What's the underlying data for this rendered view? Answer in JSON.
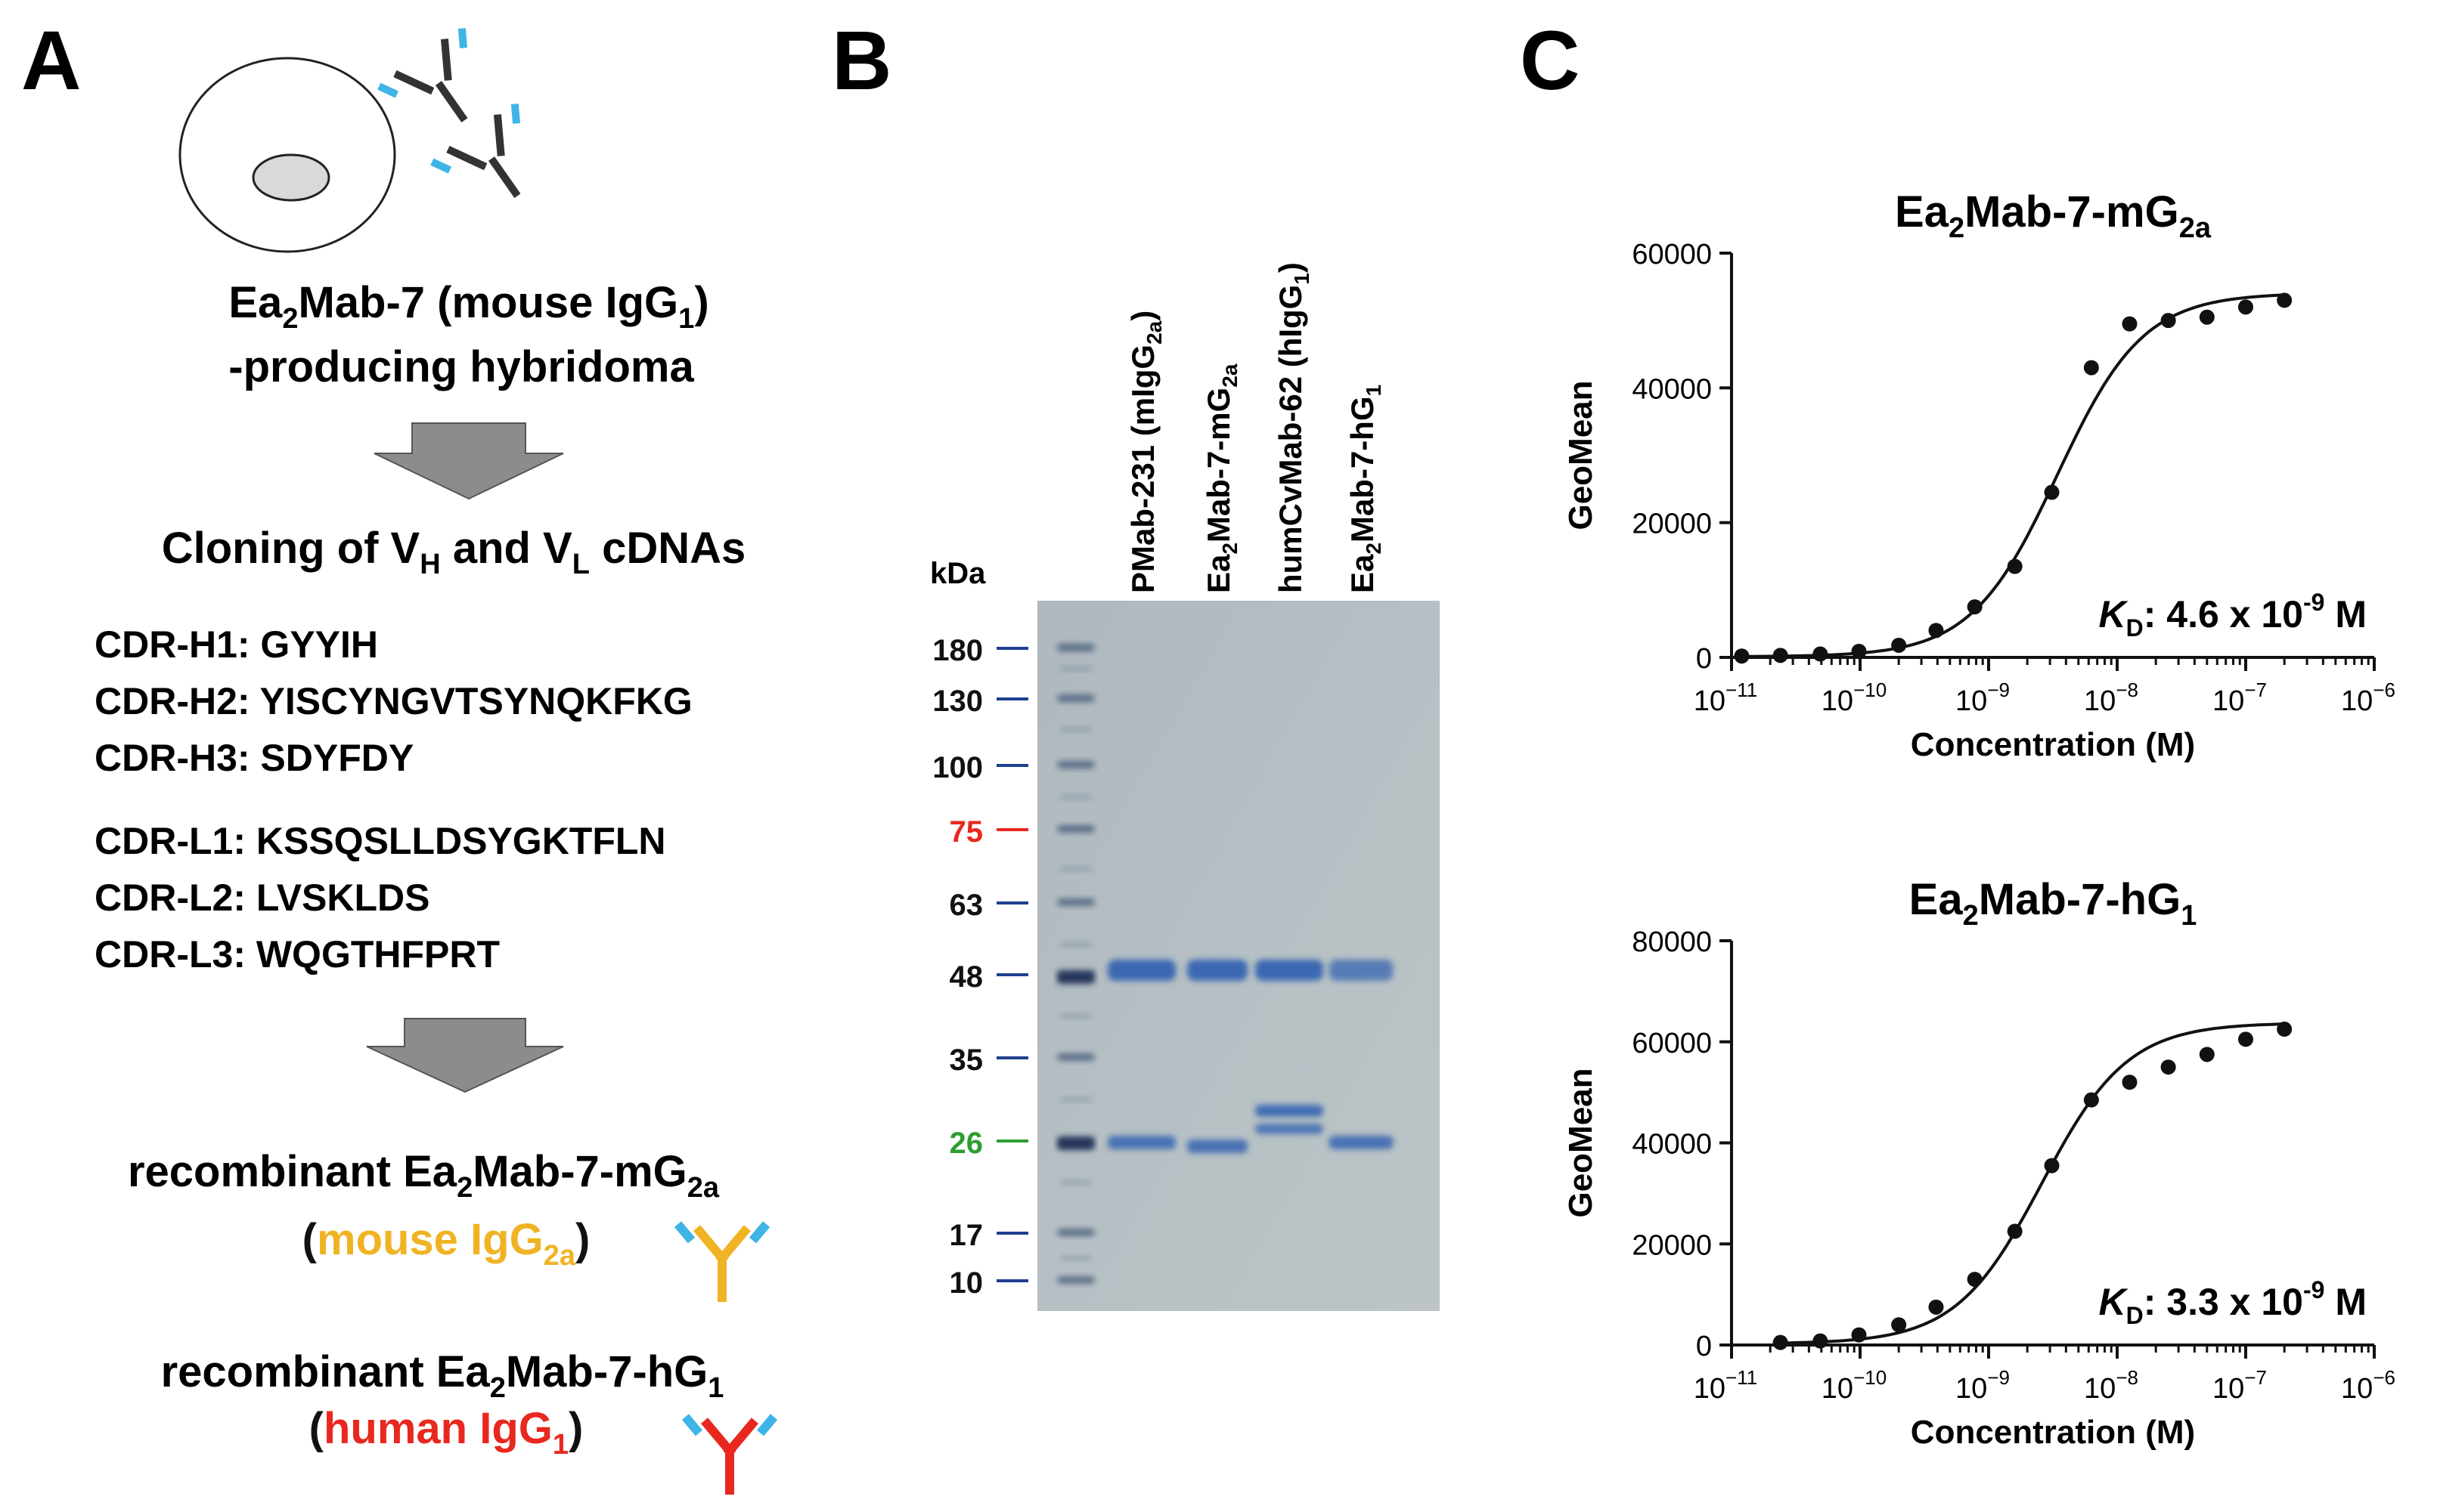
{
  "panel_a": {
    "letter": "A",
    "hybridoma": {
      "pre": "Ea",
      "sub1": "2",
      "mid": "Mab-7 (mouse IgG",
      "sub2": "1",
      "post": ")"
    },
    "hybridoma_line2": "-producing hybridoma",
    "cloning": {
      "pre": "Cloning of V",
      "sub1": "H",
      "mid": " and V",
      "sub2": "L",
      "post": " cDNAs"
    },
    "cdrs_heavy": [
      "CDR-H1: GYYIH",
      "CDR-H2: YISCYNGVTSYNQKFKG",
      "CDR-H3: SDYFDY"
    ],
    "cdrs_light": [
      "CDR-L1: KSSQSLLDSYGKTFLN",
      "CDR-L2: LVSKLDS",
      "CDR-L3: WQGTHFPRT"
    ],
    "recomb1": {
      "pre": "recombinant Ea",
      "sub1": "2",
      "mid": "Mab-7-mG",
      "sub2": "2a"
    },
    "recomb1_type": {
      "open": "(",
      "text": "mouse IgG",
      "sub": "2a",
      "close": ")"
    },
    "recomb2": {
      "pre": "recombinant Ea",
      "sub1": "2",
      "mid": "Mab-7-hG",
      "sub2": "1"
    },
    "recomb2_type": {
      "open": "(",
      "text": "human IgG",
      "sub": "1",
      "close": ")"
    },
    "colors": {
      "mouse": "#f0b323",
      "human": "#e8281e",
      "light_chain": "#3fb4e6",
      "arrow": "#8c8c8c"
    }
  },
  "panel_b": {
    "letter": "B",
    "unit": "kDa",
    "markers": [
      {
        "label": "180",
        "color": "#111111"
      },
      {
        "label": "130",
        "color": "#111111"
      },
      {
        "label": "100",
        "color": "#111111"
      },
      {
        "label": "75",
        "color": "#e8281e"
      },
      {
        "label": "63",
        "color": "#111111"
      },
      {
        "label": "48",
        "color": "#111111"
      },
      {
        "label": "35",
        "color": "#111111"
      },
      {
        "label": "26",
        "color": "#2e9e2e"
      },
      {
        "label": "17",
        "color": "#111111"
      },
      {
        "label": "10",
        "color": "#111111"
      }
    ],
    "lanes": [
      {
        "pre": "PMab-231 (mIgG",
        "sub": "2a",
        "post": ")"
      },
      {
        "pre": "Ea",
        "sub": "2",
        "post": "Mab-7-mG",
        "sub2": "2a"
      },
      {
        "pre": "humCvMab-62 (hIgG",
        "sub": "1",
        "post": ")"
      },
      {
        "pre": "Ea",
        "sub": "2",
        "post": "Mab-7-hG",
        "sub2": "1"
      }
    ]
  },
  "panel_c": {
    "letter": "C",
    "chart_data": [
      {
        "type": "scatter",
        "title": {
          "pre": "Ea",
          "sub1": "2",
          "mid": "Mab-7-mG",
          "sub2": "2a"
        },
        "xlabel": "Concentration (M)",
        "ylabel": "GeoMean",
        "x_scale": "log",
        "xlim": [
          1e-11,
          1e-06
        ],
        "ylim": [
          0,
          60000
        ],
        "y_ticks": [
          "0",
          "20000",
          "40000",
          "60000"
        ],
        "x_ticks": [
          {
            "base": "10",
            "exp": "−11"
          },
          {
            "base": "10",
            "exp": "−10"
          },
          {
            "base": "10",
            "exp": "−9"
          },
          {
            "base": "10",
            "exp": "−8"
          },
          {
            "base": "10",
            "exp": "−7"
          },
          {
            "base": "10",
            "exp": "−6"
          }
        ],
        "x": [
          1.2e-11,
          2.4e-11,
          4.9e-11,
          9.8e-11,
          2e-10,
          3.9e-10,
          7.8e-10,
          1.6e-09,
          3.1e-09,
          6.3e-09,
          1.25e-08,
          2.5e-08,
          5e-08,
          1e-07,
          2e-07
        ],
        "y": [
          200,
          300,
          500,
          900,
          1800,
          4000,
          7500,
          13500,
          24500,
          43000,
          49500,
          50000,
          50500,
          52000,
          53000
        ],
        "kd": {
          "italic": "K",
          "sub": "D",
          "text": ": 4.6 x 10",
          "exp": "-9",
          "unit": " M"
        }
      },
      {
        "type": "scatter",
        "title": {
          "pre": "Ea",
          "sub1": "2",
          "mid": "Mab-7-hG",
          "sub2": "1"
        },
        "xlabel": "Concentration (M)",
        "ylabel": "GeoMean",
        "x_scale": "log",
        "xlim": [
          1e-11,
          1e-06
        ],
        "ylim": [
          0,
          80000
        ],
        "y_ticks": [
          "0",
          "20000",
          "40000",
          "60000",
          "80000"
        ],
        "x_ticks": [
          {
            "base": "10",
            "exp": "−11"
          },
          {
            "base": "10",
            "exp": "−10"
          },
          {
            "base": "10",
            "exp": "−9"
          },
          {
            "base": "10",
            "exp": "−8"
          },
          {
            "base": "10",
            "exp": "−7"
          },
          {
            "base": "10",
            "exp": "−6"
          }
        ],
        "x": [
          2.4e-11,
          4.9e-11,
          9.8e-11,
          2e-10,
          3.9e-10,
          7.8e-10,
          1.6e-09,
          3.1e-09,
          6.3e-09,
          1.25e-08,
          2.5e-08,
          5e-08,
          1e-07,
          2e-07
        ],
        "y": [
          500,
          800,
          2000,
          4000,
          7500,
          13000,
          22500,
          35500,
          48500,
          52000,
          55000,
          57500,
          60500,
          62500
        ],
        "kd": {
          "italic": "K",
          "sub": "D",
          "text": ": 3.3 x 10",
          "exp": "-9",
          "unit": " M"
        }
      }
    ]
  }
}
